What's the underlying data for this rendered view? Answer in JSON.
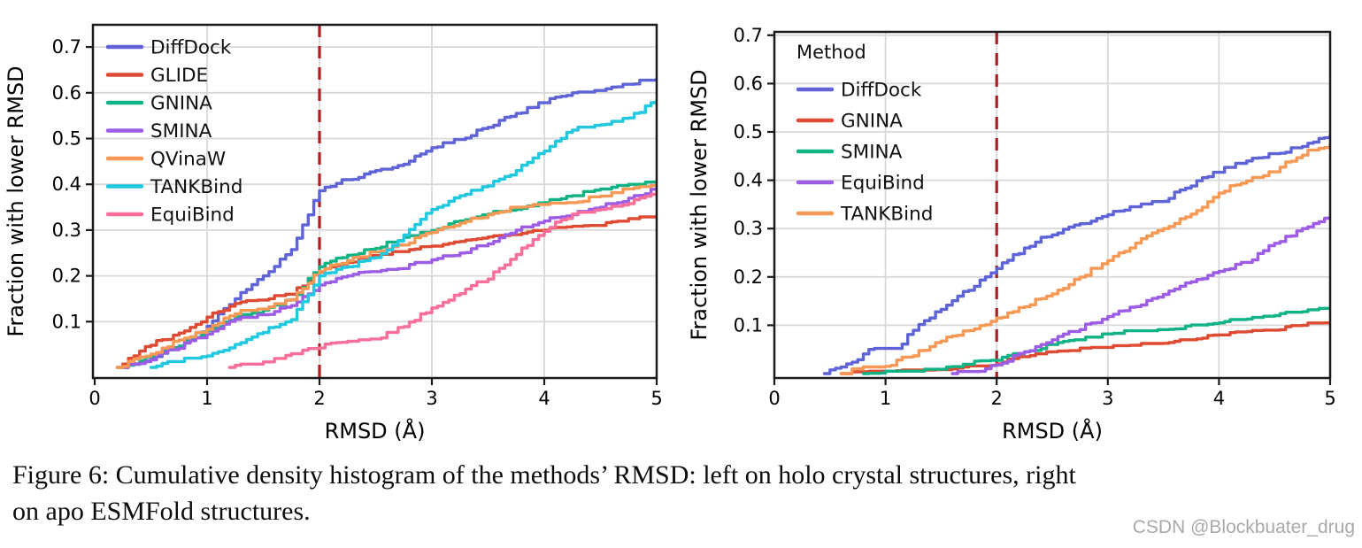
{
  "figure": {
    "caption_line1": "Figure 6: Cumulative density histogram of the methods’ RMSD: left on holo crystal structures, right",
    "caption_line2": "on apo ESMFold structures."
  },
  "watermark": "CSDN @Blockbuater_drug",
  "colors": {
    "blue": "#5e63d8",
    "red": "#df4b32",
    "green": "#11b384",
    "purple": "#9d5ce6",
    "orange": "#f79954",
    "cyan": "#20c8e0",
    "pink": "#f96f99",
    "cutoff_line": "#a62126",
    "grid": "#d9d9d9",
    "axis": "#1a1a1a"
  },
  "chart_data": [
    {
      "type": "line",
      "subtype": "cumulative-density",
      "title": "",
      "xlabel": "RMSD (Å)",
      "ylabel": "Fraction with lower RMSD",
      "xlim": [
        0,
        5
      ],
      "ylim": [
        0,
        0.75
      ],
      "xticks": [
        0,
        1,
        2,
        3,
        4,
        5
      ],
      "yticks": [
        0.1,
        0.2,
        0.3,
        0.4,
        0.5,
        0.6,
        0.7
      ],
      "grid": true,
      "vline": {
        "x": 2,
        "style": "dashed",
        "color": "#a62126"
      },
      "legend": {
        "title": "",
        "position": "upper-left",
        "entries": [
          "DiffDock",
          "GLIDE",
          "GNINA",
          "SMINA",
          "QVinaW",
          "TANKBind",
          "EquiBind"
        ]
      },
      "series": [
        {
          "name": "DiffDock",
          "color": "#5e63d8",
          "points": [
            [
              0.25,
              0
            ],
            [
              0.4,
              0.01
            ],
            [
              0.5,
              0.02
            ],
            [
              0.75,
              0.045
            ],
            [
              1,
              0.09
            ],
            [
              1.25,
              0.15
            ],
            [
              1.5,
              0.2
            ],
            [
              1.75,
              0.26
            ],
            [
              1.9,
              0.335
            ],
            [
              2,
              0.39
            ],
            [
              2.25,
              0.41
            ],
            [
              2.5,
              0.43
            ],
            [
              2.75,
              0.445
            ],
            [
              3,
              0.48
            ],
            [
              3.25,
              0.5
            ],
            [
              3.5,
              0.525
            ],
            [
              3.75,
              0.555
            ],
            [
              4,
              0.58
            ],
            [
              4.25,
              0.6
            ],
            [
              4.5,
              0.605
            ],
            [
              4.75,
              0.62
            ],
            [
              5,
              0.63
            ]
          ]
        },
        {
          "name": "GLIDE",
          "color": "#df4b32",
          "points": [
            [
              0.2,
              0
            ],
            [
              0.3,
              0.02
            ],
            [
              0.5,
              0.05
            ],
            [
              0.75,
              0.075
            ],
            [
              1,
              0.11
            ],
            [
              1.25,
              0.14
            ],
            [
              1.5,
              0.15
            ],
            [
              1.75,
              0.16
            ],
            [
              2,
              0.21
            ],
            [
              2.25,
              0.23
            ],
            [
              2.5,
              0.245
            ],
            [
              2.75,
              0.255
            ],
            [
              3,
              0.265
            ],
            [
              3.25,
              0.275
            ],
            [
              3.5,
              0.285
            ],
            [
              3.75,
              0.29
            ],
            [
              4,
              0.3
            ],
            [
              4.5,
              0.31
            ],
            [
              4.75,
              0.325
            ],
            [
              5,
              0.33
            ]
          ]
        },
        {
          "name": "GNINA",
          "color": "#11b384",
          "points": [
            [
              0.25,
              0
            ],
            [
              0.5,
              0.025
            ],
            [
              0.75,
              0.05
            ],
            [
              1,
              0.08
            ],
            [
              1.25,
              0.11
            ],
            [
              1.5,
              0.125
            ],
            [
              1.75,
              0.148
            ],
            [
              2,
              0.22
            ],
            [
              2.25,
              0.245
            ],
            [
              2.5,
              0.26
            ],
            [
              2.75,
              0.285
            ],
            [
              3,
              0.3
            ],
            [
              3.25,
              0.32
            ],
            [
              3.5,
              0.335
            ],
            [
              3.75,
              0.345
            ],
            [
              4,
              0.36
            ],
            [
              4.25,
              0.375
            ],
            [
              4.5,
              0.39
            ],
            [
              4.75,
              0.4
            ],
            [
              5,
              0.405
            ]
          ]
        },
        {
          "name": "SMINA",
          "color": "#9d5ce6",
          "points": [
            [
              0.25,
              0
            ],
            [
              0.5,
              0.02
            ],
            [
              0.75,
              0.045
            ],
            [
              1,
              0.073
            ],
            [
              1.25,
              0.105
            ],
            [
              1.5,
              0.115
            ],
            [
              1.75,
              0.135
            ],
            [
              2,
              0.18
            ],
            [
              2.25,
              0.2
            ],
            [
              2.5,
              0.212
            ],
            [
              2.75,
              0.22
            ],
            [
              3,
              0.235
            ],
            [
              3.25,
              0.25
            ],
            [
              3.5,
              0.27
            ],
            [
              3.75,
              0.3
            ],
            [
              4,
              0.32
            ],
            [
              4.25,
              0.335
            ],
            [
              4.5,
              0.35
            ],
            [
              4.75,
              0.37
            ],
            [
              5,
              0.39
            ]
          ]
        },
        {
          "name": "QVinaW",
          "color": "#f79954",
          "points": [
            [
              0.2,
              0
            ],
            [
              0.5,
              0.03
            ],
            [
              0.75,
              0.06
            ],
            [
              1,
              0.085
            ],
            [
              1.25,
              0.12
            ],
            [
              1.5,
              0.13
            ],
            [
              1.75,
              0.15
            ],
            [
              2,
              0.21
            ],
            [
              2.25,
              0.235
            ],
            [
              2.5,
              0.252
            ],
            [
              2.75,
              0.27
            ],
            [
              3,
              0.295
            ],
            [
              3.25,
              0.315
            ],
            [
              3.5,
              0.335
            ],
            [
              3.75,
              0.35
            ],
            [
              4,
              0.357
            ],
            [
              4.25,
              0.36
            ],
            [
              4.5,
              0.375
            ],
            [
              4.75,
              0.39
            ],
            [
              5,
              0.4
            ]
          ]
        },
        {
          "name": "TANKBind",
          "color": "#20c8e0",
          "points": [
            [
              0.5,
              0
            ],
            [
              0.75,
              0.015
            ],
            [
              1,
              0.025
            ],
            [
              1.25,
              0.05
            ],
            [
              1.5,
              0.078
            ],
            [
              1.75,
              0.105
            ],
            [
              2,
              0.2
            ],
            [
              2.25,
              0.22
            ],
            [
              2.5,
              0.24
            ],
            [
              2.75,
              0.29
            ],
            [
              3,
              0.345
            ],
            [
              3.25,
              0.375
            ],
            [
              3.5,
              0.4
            ],
            [
              3.75,
              0.43
            ],
            [
              4,
              0.475
            ],
            [
              4.25,
              0.52
            ],
            [
              4.5,
              0.53
            ],
            [
              4.75,
              0.545
            ],
            [
              5,
              0.585
            ]
          ]
        },
        {
          "name": "EquiBind",
          "color": "#f96f99",
          "points": [
            [
              1.2,
              0
            ],
            [
              1.5,
              0.012
            ],
            [
              1.75,
              0.03
            ],
            [
              2,
              0.045
            ],
            [
              2.25,
              0.057
            ],
            [
              2.5,
              0.062
            ],
            [
              2.75,
              0.09
            ],
            [
              3,
              0.13
            ],
            [
              3.25,
              0.165
            ],
            [
              3.5,
              0.195
            ],
            [
              3.75,
              0.25
            ],
            [
              4,
              0.3
            ],
            [
              4.25,
              0.335
            ],
            [
              4.5,
              0.345
            ],
            [
              4.75,
              0.36
            ],
            [
              5,
              0.385
            ]
          ]
        }
      ]
    },
    {
      "type": "line",
      "subtype": "cumulative-density",
      "title": "",
      "xlabel": "RMSD (Å)",
      "ylabel": "Fraction with lower RMSD",
      "xlim": [
        0,
        5
      ],
      "ylim": [
        0,
        0.71
      ],
      "xticks": [
        0,
        1,
        2,
        3,
        4,
        5
      ],
      "yticks": [
        0.1,
        0.2,
        0.3,
        0.4,
        0.5,
        0.6,
        0.7
      ],
      "grid": true,
      "vline": {
        "x": 2,
        "style": "dashed",
        "color": "#a62126"
      },
      "legend": {
        "title": "Method",
        "position": "upper-left",
        "entries": [
          "DiffDock",
          "GNINA",
          "SMINA",
          "EquiBind",
          "TANKBind"
        ]
      },
      "series": [
        {
          "name": "DiffDock",
          "color": "#5e63d8",
          "points": [
            [
              0.45,
              0
            ],
            [
              0.6,
              0.015
            ],
            [
              0.75,
              0.03
            ],
            [
              0.85,
              0.05
            ],
            [
              1.1,
              0.052
            ],
            [
              1.25,
              0.09
            ],
            [
              1.5,
              0.133
            ],
            [
              1.75,
              0.175
            ],
            [
              2,
              0.22
            ],
            [
              2.25,
              0.26
            ],
            [
              2.5,
              0.29
            ],
            [
              2.75,
              0.31
            ],
            [
              3,
              0.33
            ],
            [
              3.25,
              0.345
            ],
            [
              3.5,
              0.36
            ],
            [
              3.75,
              0.39
            ],
            [
              4,
              0.42
            ],
            [
              4.25,
              0.44
            ],
            [
              4.5,
              0.455
            ],
            [
              4.75,
              0.47
            ],
            [
              5,
              0.495
            ]
          ]
        },
        {
          "name": "GNINA",
          "color": "#df4b32",
          "points": [
            [
              0.6,
              0
            ],
            [
              1,
              0.005
            ],
            [
              1.5,
              0.008
            ],
            [
              2,
              0.02
            ],
            [
              2.25,
              0.035
            ],
            [
              2.5,
              0.045
            ],
            [
              3,
              0.055
            ],
            [
              3.5,
              0.063
            ],
            [
              3.75,
              0.07
            ],
            [
              4,
              0.08
            ],
            [
              4.5,
              0.09
            ],
            [
              4.75,
              0.1
            ],
            [
              5,
              0.105
            ]
          ]
        },
        {
          "name": "SMINA",
          "color": "#11b384",
          "points": [
            [
              0.8,
              0
            ],
            [
              1.25,
              0.005
            ],
            [
              1.5,
              0.011
            ],
            [
              1.75,
              0.02
            ],
            [
              2,
              0.03
            ],
            [
              2.25,
              0.045
            ],
            [
              2.5,
              0.06
            ],
            [
              2.75,
              0.07
            ],
            [
              3,
              0.082
            ],
            [
              3.5,
              0.091
            ],
            [
              4,
              0.105
            ],
            [
              4.5,
              0.12
            ],
            [
              4.75,
              0.128
            ],
            [
              5,
              0.135
            ]
          ]
        },
        {
          "name": "EquiBind",
          "color": "#9d5ce6",
          "points": [
            [
              1.6,
              0
            ],
            [
              1.9,
              0.01
            ],
            [
              2,
              0.018
            ],
            [
              2.25,
              0.045
            ],
            [
              2.5,
              0.07
            ],
            [
              2.75,
              0.095
            ],
            [
              3,
              0.118
            ],
            [
              3.25,
              0.14
            ],
            [
              3.5,
              0.164
            ],
            [
              3.75,
              0.19
            ],
            [
              4,
              0.215
            ],
            [
              4.25,
              0.23
            ],
            [
              4.5,
              0.27
            ],
            [
              4.75,
              0.3
            ],
            [
              5,
              0.325
            ]
          ]
        },
        {
          "name": "TANKBind",
          "color": "#f79954",
          "points": [
            [
              0.6,
              0
            ],
            [
              0.75,
              0.01
            ],
            [
              1,
              0.015
            ],
            [
              1.25,
              0.04
            ],
            [
              1.5,
              0.07
            ],
            [
              1.75,
              0.09
            ],
            [
              2,
              0.115
            ],
            [
              2.25,
              0.14
            ],
            [
              2.5,
              0.165
            ],
            [
              2.75,
              0.2
            ],
            [
              3,
              0.235
            ],
            [
              3.25,
              0.27
            ],
            [
              3.5,
              0.3
            ],
            [
              3.75,
              0.33
            ],
            [
              4,
              0.375
            ],
            [
              4.25,
              0.4
            ],
            [
              4.5,
              0.42
            ],
            [
              4.75,
              0.455
            ],
            [
              5,
              0.475
            ]
          ]
        }
      ]
    }
  ]
}
